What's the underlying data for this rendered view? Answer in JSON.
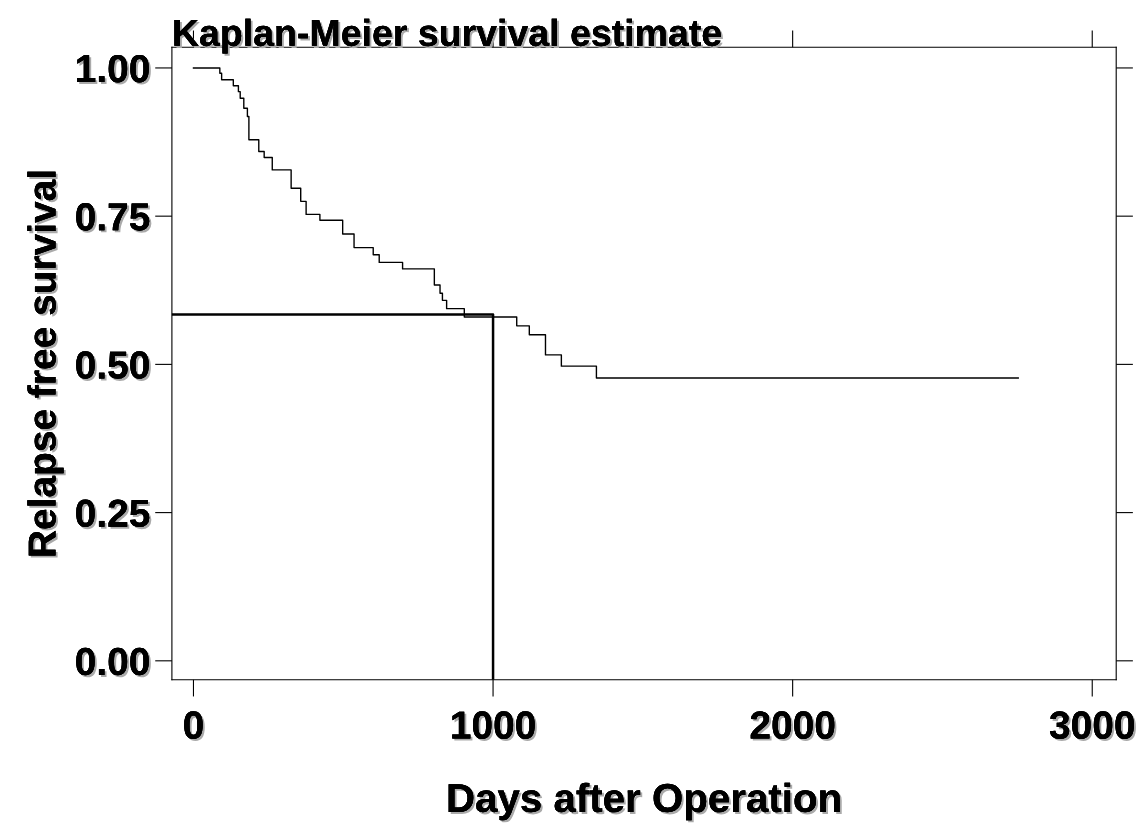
{
  "chart_data": {
    "type": "step",
    "title": "Kaplan-Meier survival estimate",
    "xlabel": "Days after Operation",
    "ylabel": "Relapse free survival",
    "series": [
      {
        "color": "#000000",
        "x": [
          0,
          88,
          94,
          133,
          150,
          156,
          168,
          180,
          185,
          218,
          236,
          263,
          326,
          358,
          376,
          422,
          498,
          536,
          600,
          620,
          698,
          804,
          823,
          831,
          845,
          904,
          1079,
          1121,
          1175,
          1228,
          1345,
          2753
        ],
        "values": [
          1.0,
          0.991,
          0.98,
          0.97,
          0.96,
          0.949,
          0.932,
          0.918,
          0.879,
          0.859,
          0.849,
          0.828,
          0.797,
          0.775,
          0.753,
          0.743,
          0.72,
          0.697,
          0.685,
          0.672,
          0.661,
          0.634,
          0.62,
          0.608,
          0.594,
          0.58,
          0.565,
          0.55,
          0.516,
          0.497,
          0.477,
          0.477
        ]
      },
      {
        "type": "line",
        "color": "#000000",
        "x": [
          -72,
          1000,
          1000
        ],
        "values": [
          0.584,
          0.584,
          -0.032
        ]
      }
    ],
    "xlim": [
      -72,
      3080
    ],
    "ylim": [
      -0.032,
      1.035
    ],
    "xticks": [
      0,
      1000,
      2000,
      3000
    ],
    "yticks": [
      {
        "value": 0,
        "label": "0.00"
      },
      {
        "value": 0.25,
        "label": "0.25"
      },
      {
        "value": 0.5,
        "label": "0.50"
      },
      {
        "value": 0.75,
        "label": "0.75"
      },
      {
        "value": 1.0,
        "label": "1.00"
      }
    ],
    "grid": false,
    "legend": false
  }
}
